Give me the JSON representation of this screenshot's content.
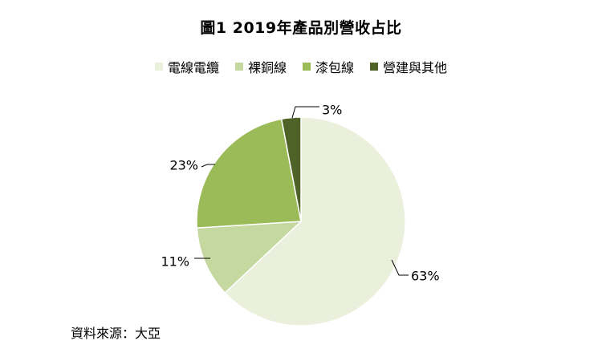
{
  "chart_data": {
    "type": "pie",
    "title": "圖1 2019年產品別營收占比",
    "categories": [
      "電線電纜",
      "裸銅線",
      "漆包線",
      "營建與其他"
    ],
    "values": [
      63,
      11,
      23,
      3
    ],
    "labels": [
      "63%",
      "11%",
      "23%",
      "3%"
    ],
    "colors": [
      "#ebf0dd",
      "#c4d8a0",
      "#9bbb59",
      "#4f6228"
    ],
    "legend_position": "top"
  },
  "source": "資料來源：大亞"
}
